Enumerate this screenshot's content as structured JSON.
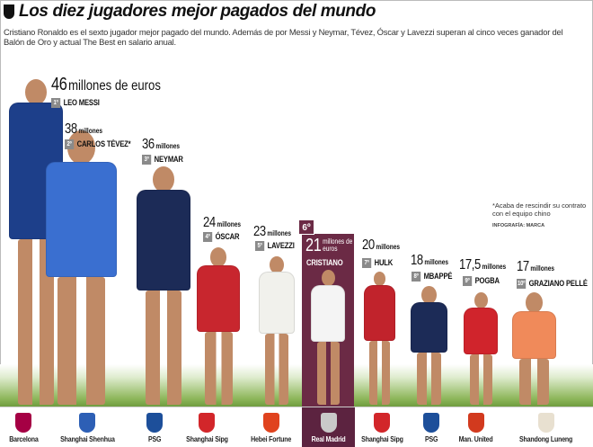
{
  "title": "Los diez jugadores mejor pagados del mundo",
  "subtitle": "Cristiano Ronaldo es el sexto jugador mejor pagado del mundo. Además de por Messi y Neymar, Tévez, Óscar y Lavezzi superan al cinco veces ganador del Balón de Oro y actual The Best en salario anual.",
  "note": "*Acaba de rescindir su contrato con el equipo chino",
  "credit": "INFOGRAFÍA: MARCA",
  "highlight_color": "#6b2a45",
  "players": [
    {
      "rank": "1º",
      "name": "LEO MESSI",
      "value": "46",
      "unit": "millones de euros",
      "club": "Barcelona",
      "jersey": "#1d3f8a",
      "club_color": "#a50044"
    },
    {
      "rank": "2º",
      "name": "CARLOS TÉVEZ*",
      "value": "38",
      "unit": "millones",
      "club": "Shanghai Shenhua",
      "jersey": "#3a6fd0",
      "club_color": "#2d5fb5"
    },
    {
      "rank": "3º",
      "name": "NEYMAR",
      "value": "36",
      "unit": "millones",
      "club": "PSG",
      "jersey": "#1c2b57",
      "club_color": "#1d4f9a"
    },
    {
      "rank": "4º",
      "name": "ÓSCAR",
      "value": "24",
      "unit": "millones",
      "club": "Shanghai Sipg",
      "jersey": "#c8262e",
      "club_color": "#d2262a"
    },
    {
      "rank": "5º",
      "name": "LAVEZZI",
      "value": "23",
      "unit": "millones",
      "club": "Hebei Fortune",
      "jersey": "#f1f1ec",
      "club_color": "#e0431e"
    },
    {
      "rank": "6º",
      "name": "CRISTIANO",
      "value": "21",
      "unit": "millones de euros",
      "club": "Real Madrid",
      "jersey": "#f4f4f4",
      "club_color": "#c9c9c9"
    },
    {
      "rank": "7º",
      "name": "HULK",
      "value": "20",
      "unit": "millones",
      "club": "Shanghai Sipg",
      "jersey": "#c1232c",
      "club_color": "#d2262a"
    },
    {
      "rank": "8º",
      "name": "MBAPPÉ",
      "value": "18",
      "unit": "millones",
      "club": "PSG",
      "jersey": "#1c2b57",
      "club_color": "#1d4f9a"
    },
    {
      "rank": "9º",
      "name": "POGBA",
      "value": "17,5",
      "unit": "millones",
      "club": "Man. United",
      "jersey": "#d0242c",
      "club_color": "#d23a1e"
    },
    {
      "rank": "10º",
      "name": "GRAZIANO PELLÉ",
      "value": "17",
      "unit": "millones",
      "club": "Shandong Luneng",
      "jersey": "#f08a5a",
      "club_color": "#e8e0d0"
    }
  ]
}
